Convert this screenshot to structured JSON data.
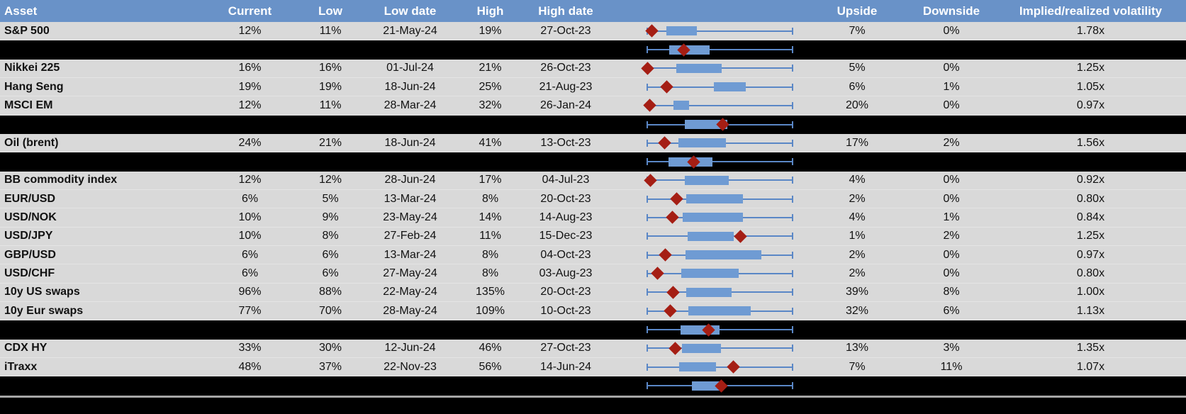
{
  "colors": {
    "header_bg": "#6992C8",
    "row_bg": "#D9D9D9",
    "black_row_bg": "#000000",
    "box_fill": "#6F9BD3",
    "whisker": "#5A87C6",
    "marker_red": "#A51E14",
    "separator_gray": "#A6A6A6"
  },
  "chart_data": {
    "type": "table",
    "columns": [
      "Asset",
      "Current",
      "Low",
      "Low date",
      "High",
      "High date",
      "",
      "Upside",
      "Downside",
      "Implied/realized volatility"
    ],
    "embedded_plot_type": "range box plot with whiskers (min-max) and red diamond current marker",
    "plot_scale_note": "range_plot values are normalized 0-1 fractions of the plot track width; whiskers span 0 to 1 on every row",
    "rows": [
      {
        "type": "data",
        "asset": "S&P 500",
        "current": "12%",
        "low": "11%",
        "low_date": "21-May-24",
        "high": "19%",
        "high_date": "27-Oct-23",
        "upside": "7%",
        "downside": "0%",
        "implied_realized": "1.78x",
        "range_plot": {
          "whisker_min": 0,
          "box_low": 0.13,
          "box_high": 0.34,
          "marker": 0.03,
          "whisker_max": 1
        }
      },
      {
        "type": "summary",
        "range_plot": {
          "whisker_min": 0,
          "box_low": 0.15,
          "box_high": 0.43,
          "marker": 0.25,
          "whisker_max": 1
        }
      },
      {
        "type": "data",
        "asset": "Nikkei 225",
        "current": "16%",
        "low": "16%",
        "low_date": "01-Jul-24",
        "high": "21%",
        "high_date": "26-Oct-23",
        "upside": "5%",
        "downside": "0%",
        "implied_realized": "1.25x",
        "range_plot": {
          "whisker_min": 0,
          "box_low": 0.2,
          "box_high": 0.51,
          "marker": 0.0,
          "whisker_max": 1
        }
      },
      {
        "type": "data",
        "asset": "Hang Seng",
        "current": "19%",
        "low": "19%",
        "low_date": "18-Jun-24",
        "high": "25%",
        "high_date": "21-Aug-23",
        "upside": "6%",
        "downside": "1%",
        "implied_realized": "1.05x",
        "range_plot": {
          "whisker_min": 0,
          "box_low": 0.46,
          "box_high": 0.68,
          "marker": 0.135,
          "whisker_max": 1
        }
      },
      {
        "type": "data",
        "asset": "MSCI EM",
        "current": "12%",
        "low": "11%",
        "low_date": "28-Mar-24",
        "high": "32%",
        "high_date": "26-Jan-24",
        "upside": "20%",
        "downside": "0%",
        "implied_realized": "0.97x",
        "range_plot": {
          "whisker_min": 0,
          "box_low": 0.18,
          "box_high": 0.29,
          "marker": 0.015,
          "whisker_max": 1
        }
      },
      {
        "type": "summary",
        "range_plot": {
          "whisker_min": 0,
          "box_low": 0.26,
          "box_high": 0.55,
          "marker": 0.52,
          "whisker_max": 1
        }
      },
      {
        "type": "data",
        "asset": "Oil (brent)",
        "current": "24%",
        "low": "21%",
        "low_date": "18-Jun-24",
        "high": "41%",
        "high_date": "13-Oct-23",
        "upside": "17%",
        "downside": "2%",
        "implied_realized": "1.56x",
        "range_plot": {
          "whisker_min": 0,
          "box_low": 0.215,
          "box_high": 0.54,
          "marker": 0.12,
          "whisker_max": 1
        }
      },
      {
        "type": "summary",
        "range_plot": {
          "whisker_min": 0,
          "box_low": 0.145,
          "box_high": 0.45,
          "marker": 0.32,
          "whisker_max": 1
        }
      },
      {
        "type": "data",
        "asset": "BB commodity index",
        "current": "12%",
        "low": "12%",
        "low_date": "28-Jun-24",
        "high": "17%",
        "high_date": "04-Jul-23",
        "upside": "4%",
        "downside": "0%",
        "implied_realized": "0.92x",
        "range_plot": {
          "whisker_min": 0,
          "box_low": 0.26,
          "box_high": 0.56,
          "marker": 0.02,
          "whisker_max": 1
        }
      },
      {
        "type": "data",
        "asset": "EUR/USD",
        "current": "6%",
        "low": "5%",
        "low_date": "13-Mar-24",
        "high": "8%",
        "high_date": "20-Oct-23",
        "upside": "2%",
        "downside": "0%",
        "implied_realized": "0.80x",
        "range_plot": {
          "whisker_min": 0,
          "box_low": 0.27,
          "box_high": 0.66,
          "marker": 0.2,
          "whisker_max": 1
        }
      },
      {
        "type": "data",
        "asset": "USD/NOK",
        "current": "10%",
        "low": "9%",
        "low_date": "23-May-24",
        "high": "14%",
        "high_date": "14-Aug-23",
        "upside": "4%",
        "downside": "1%",
        "implied_realized": "0.84x",
        "range_plot": {
          "whisker_min": 0,
          "box_low": 0.245,
          "box_high": 0.66,
          "marker": 0.175,
          "whisker_max": 1
        }
      },
      {
        "type": "data",
        "asset": "USD/JPY",
        "current": "10%",
        "low": "8%",
        "low_date": "27-Feb-24",
        "high": "11%",
        "high_date": "15-Dec-23",
        "upside": "1%",
        "downside": "2%",
        "implied_realized": "1.25x",
        "range_plot": {
          "whisker_min": 0,
          "box_low": 0.28,
          "box_high": 0.595,
          "marker": 0.64,
          "whisker_max": 1
        }
      },
      {
        "type": "data",
        "asset": "GBP/USD",
        "current": "6%",
        "low": "6%",
        "low_date": "13-Mar-24",
        "high": "8%",
        "high_date": "04-Oct-23",
        "upside": "2%",
        "downside": "0%",
        "implied_realized": "0.97x",
        "range_plot": {
          "whisker_min": 0,
          "box_low": 0.265,
          "box_high": 0.785,
          "marker": 0.125,
          "whisker_max": 1
        }
      },
      {
        "type": "data",
        "asset": "USD/CHF",
        "current": "6%",
        "low": "6%",
        "low_date": "27-May-24",
        "high": "8%",
        "high_date": "03-Aug-23",
        "upside": "2%",
        "downside": "0%",
        "implied_realized": "0.80x",
        "range_plot": {
          "whisker_min": 0,
          "box_low": 0.235,
          "box_high": 0.63,
          "marker": 0.07,
          "whisker_max": 1
        }
      },
      {
        "type": "data",
        "asset": "10y US swaps",
        "current": "96%",
        "low": "88%",
        "low_date": "22-May-24",
        "high": "135%",
        "high_date": "20-Oct-23",
        "upside": "39%",
        "downside": "8%",
        "implied_realized": "1.00x",
        "range_plot": {
          "whisker_min": 0,
          "box_low": 0.27,
          "box_high": 0.58,
          "marker": 0.18,
          "whisker_max": 1
        }
      },
      {
        "type": "data",
        "asset": "10y Eur swaps",
        "current": "77%",
        "low": "70%",
        "low_date": "28-May-24",
        "high": "109%",
        "high_date": "10-Oct-23",
        "upside": "32%",
        "downside": "6%",
        "implied_realized": "1.13x",
        "range_plot": {
          "whisker_min": 0,
          "box_low": 0.285,
          "box_high": 0.71,
          "marker": 0.16,
          "whisker_max": 1
        }
      },
      {
        "type": "summary",
        "range_plot": {
          "whisker_min": 0,
          "box_low": 0.23,
          "box_high": 0.5,
          "marker": 0.42,
          "whisker_max": 1
        }
      },
      {
        "type": "data",
        "asset": "CDX HY",
        "current": "33%",
        "low": "30%",
        "low_date": "12-Jun-24",
        "high": "46%",
        "high_date": "27-Oct-23",
        "upside": "13%",
        "downside": "3%",
        "implied_realized": "1.35x",
        "range_plot": {
          "whisker_min": 0,
          "box_low": 0.24,
          "box_high": 0.505,
          "marker": 0.195,
          "whisker_max": 1
        }
      },
      {
        "type": "data",
        "asset": "iTraxx",
        "current": "48%",
        "low": "37%",
        "low_date": "22-Nov-23",
        "high": "56%",
        "high_date": "14-Jun-24",
        "upside": "7%",
        "downside": "11%",
        "implied_realized": "1.07x",
        "range_plot": {
          "whisker_min": 0,
          "box_low": 0.22,
          "box_high": 0.475,
          "marker": 0.595,
          "whisker_max": 1
        }
      },
      {
        "type": "summary",
        "separator_after": true,
        "range_plot": {
          "whisker_min": 0,
          "box_low": 0.305,
          "box_high": 0.515,
          "marker": 0.51,
          "whisker_max": 1
        }
      },
      {
        "type": "filler"
      }
    ]
  }
}
